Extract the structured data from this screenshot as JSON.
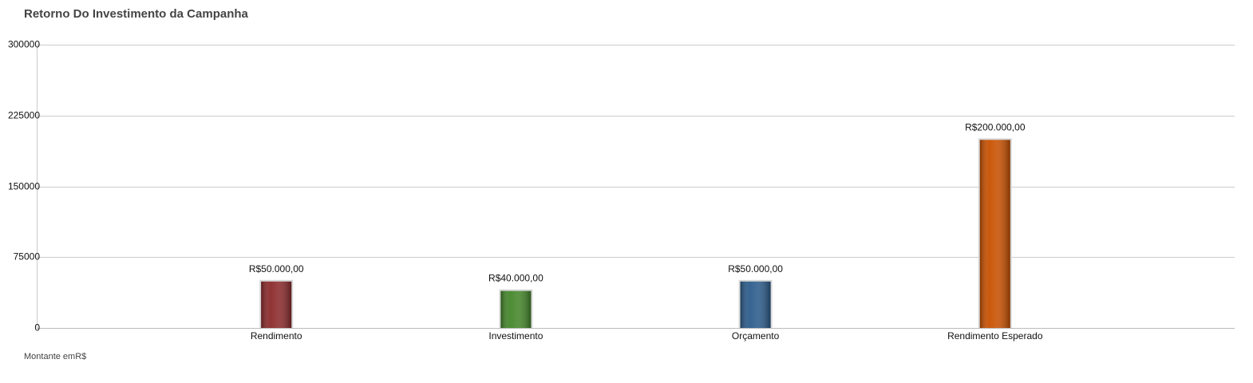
{
  "chart_data": {
    "type": "bar",
    "title": "Retorno Do Investimento da Campanha",
    "footnote": "Montante emR$",
    "categories": [
      "Rendimento",
      "Investimento",
      "Orçamento",
      "Rendimento Esperado"
    ],
    "values": [
      50000,
      40000,
      50000,
      200000
    ],
    "data_labels": [
      "R$50.000,00",
      "R$40.000,00",
      "R$50.000,00",
      "R$200.000,00"
    ],
    "colors": [
      "#8b2a2b",
      "#44862a",
      "#2b5b8b",
      "#c85000"
    ],
    "ylim": [
      0,
      300000
    ],
    "yticks": [
      0,
      75000,
      150000,
      225000,
      300000
    ],
    "ytick_labels": [
      "0",
      "75000",
      "150000",
      "225000",
      "300000"
    ],
    "grid": true,
    "legend": false
  }
}
